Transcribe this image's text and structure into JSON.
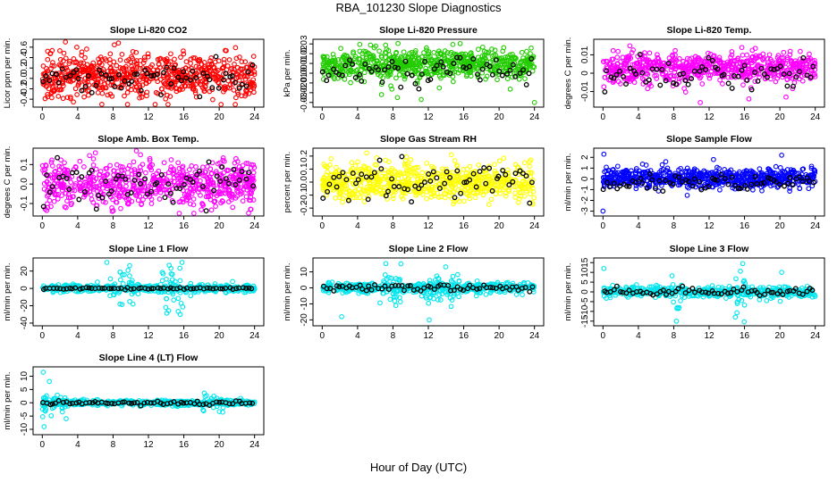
{
  "title": "RBA_101230  Slope Diagnostics",
  "xlabel": "Hour of Day (UTC)",
  "colors": {
    "red": "#ff0000",
    "green": "#22cc00",
    "magenta": "#ff00ff",
    "yellow": "#ffff00",
    "blue": "#0000ff",
    "cyan": "#00e5ee",
    "black": "#000000"
  },
  "chart_data": [
    {
      "type": "scatter",
      "title": "Slope Li-820 CO2",
      "ylabel": "Licor ppm per min.",
      "color": "red",
      "xlim": [
        0,
        24
      ],
      "ylim": [
        -0.5,
        0.7
      ],
      "yticks": [
        -0.4,
        -0.2,
        0.0,
        0.2,
        0.4,
        0.6
      ],
      "ytick_labels": [
        "-0.4",
        "-0.2",
        "0.0",
        "0.2",
        "0.4",
        "0.6"
      ],
      "xticks": [
        0,
        4,
        8,
        12,
        16,
        20,
        24
      ],
      "xtick_labels": [
        "0",
        "4",
        "8",
        "12",
        "16",
        "20",
        "24"
      ],
      "n_points": 700,
      "center": 0.05,
      "spread": 0.2,
      "black_center": -0.02,
      "black_spread": 0.15,
      "outliers": [
        [
          8.6,
          0.68
        ],
        [
          3.9,
          0.6
        ],
        [
          0.6,
          0.52
        ],
        [
          10.6,
          0.5
        ]
      ]
    },
    {
      "type": "scatter",
      "title": "Slope Li-820 Pressure",
      "ylabel": "kPa per min.",
      "color": "green",
      "xlim": [
        0,
        24
      ],
      "ylim": [
        -0.032,
        0.032
      ],
      "yticks": [
        -0.03,
        -0.02,
        -0.01,
        0.0,
        0.01,
        0.02,
        0.03
      ],
      "ytick_labels": [
        "-0.03",
        "-0.02",
        "-0.01",
        "0.00",
        "0.01",
        "0.02",
        "0.03"
      ],
      "xticks": [
        0,
        4,
        8,
        12,
        16,
        20,
        24
      ],
      "xtick_labels": [
        "0",
        "4",
        "8",
        "12",
        "16",
        "20",
        "24"
      ],
      "n_points": 700,
      "center": 0.009,
      "spread": 0.008,
      "black_center": 0.003,
      "black_spread": 0.008,
      "outliers": [
        [
          24,
          -0.03
        ],
        [
          8.5,
          -0.025
        ],
        [
          11.2,
          -0.027
        ],
        [
          6.7,
          -0.022
        ]
      ]
    },
    {
      "type": "scatter",
      "title": "Slope Li-820 Temp.",
      "ylabel": "degrees C per min.",
      "color": "magenta",
      "xlim": [
        0,
        24
      ],
      "ylim": [
        -0.017,
        0.017
      ],
      "yticks": [
        -0.01,
        0.0,
        0.01
      ],
      "ytick_labels": [
        "-0.01",
        "0",
        "0.01"
      ],
      "xticks": [
        0,
        4,
        8,
        12,
        16,
        20,
        24
      ],
      "xtick_labels": [
        "0",
        "4",
        "8",
        "12",
        "16",
        "20",
        "24"
      ],
      "n_points": 700,
      "center": 0.003,
      "spread": 0.004,
      "black_center": 0.0,
      "black_spread": 0.004,
      "outliers": [
        [
          11,
          -0.016
        ],
        [
          16.5,
          -0.014
        ],
        [
          20.7,
          -0.013
        ],
        [
          15.7,
          0.014
        ]
      ]
    },
    {
      "type": "scatter",
      "title": "Slope Amb. Box Temp.",
      "ylabel": "degrees C per min.",
      "color": "magenta",
      "xlim": [
        0,
        24
      ],
      "ylim": [
        -0.15,
        0.17
      ],
      "yticks": [
        -0.1,
        0.0,
        0.1
      ],
      "ytick_labels": [
        "-0.1",
        "0.0",
        "0.1"
      ],
      "xticks": [
        0,
        4,
        8,
        12,
        16,
        20,
        24
      ],
      "xtick_labels": [
        "0",
        "4",
        "8",
        "12",
        "16",
        "20",
        "24"
      ],
      "n_points": 700,
      "center": 0.0,
      "spread": 0.055,
      "black_center": -0.02,
      "black_spread": 0.05,
      "outliers": [
        [
          7.9,
          -0.14
        ],
        [
          23.6,
          -0.13
        ],
        [
          6,
          0.16
        ],
        [
          11.1,
          0.15
        ]
      ]
    },
    {
      "type": "scatter",
      "title": "Slope Gas Stream RH",
      "ylabel": "percent per min.",
      "color": "yellow",
      "xlim": [
        0,
        24
      ],
      "ylim": [
        -0.24,
        0.24
      ],
      "yticks": [
        -0.2,
        -0.1,
        0.0,
        0.1,
        0.2
      ],
      "ytick_labels": [
        "-0.2",
        "-0.1",
        "0.0",
        "0.1",
        "0.2"
      ],
      "xticks": [
        0,
        4,
        8,
        12,
        16,
        20,
        24
      ],
      "xtick_labels": [
        "0",
        "4",
        "8",
        "12",
        "16",
        "20",
        "24"
      ],
      "n_points": 700,
      "center": 0.0,
      "spread": 0.07,
      "black_center": 0.0,
      "black_spread": 0.07,
      "outliers": [
        [
          23.6,
          0.17
        ],
        [
          23.8,
          -0.17
        ],
        [
          1,
          0.18
        ],
        [
          14.6,
          0.21
        ]
      ]
    },
    {
      "type": "scatter",
      "title": "Slope Sample Flow",
      "ylabel": "ml/min per min.",
      "color": "blue",
      "xlim": [
        0,
        24
      ],
      "ylim": [
        -3.2,
        2.6
      ],
      "yticks": [
        -3,
        -2,
        -1,
        0,
        1,
        2
      ],
      "ytick_labels": [
        "-3",
        "-2",
        "-1",
        "0",
        "1",
        "2"
      ],
      "xticks": [
        0,
        4,
        8,
        12,
        16,
        20,
        24
      ],
      "xtick_labels": [
        "0",
        "4",
        "8",
        "12",
        "16",
        "20",
        "24"
      ],
      "n_points": 700,
      "center": 0.1,
      "spread": 0.45,
      "black_center": -0.3,
      "black_spread": 0.4,
      "outliers": [
        [
          0,
          -3.0
        ],
        [
          0.1,
          2.3
        ],
        [
          20.2,
          2.2
        ],
        [
          7.1,
          1.6
        ],
        [
          12.5,
          1.8
        ]
      ]
    },
    {
      "type": "scatter",
      "title": "Slope Line 1 Flow",
      "ylabel": "ml/min per min.",
      "color": "cyan",
      "xlim": [
        0,
        24
      ],
      "ylim": [
        -40,
        32
      ],
      "yticks": [
        -20,
        0,
        20
      ],
      "ytick_labels": [
        "-20",
        "0",
        "20"
      ],
      "extra_ytick_labels": [
        "-40"
      ],
      "xticks": [
        0,
        4,
        8,
        12,
        16,
        20,
        24
      ],
      "xtick_labels": [
        "0",
        "4",
        "8",
        "12",
        "16",
        "20",
        "24"
      ],
      "n_points": 520,
      "center": 0.0,
      "spread": 2.0,
      "black_center": 0.0,
      "black_spread": 0.5,
      "burst_ranges": [
        [
          7.5,
          10.5,
          22
        ],
        [
          13.5,
          16,
          25
        ]
      ],
      "outliers": [
        [
          15.8,
          30
        ],
        [
          7.3,
          30
        ],
        [
          15.6,
          -30
        ]
      ]
    },
    {
      "type": "scatter",
      "title": "Slope Line 2 Flow",
      "ylabel": "ml/min per min.",
      "color": "cyan",
      "xlim": [
        0,
        24
      ],
      "ylim": [
        -22,
        17
      ],
      "yticks": [
        -20,
        -10,
        0,
        10
      ],
      "ytick_labels": [
        "-20",
        "-10",
        "0",
        "10"
      ],
      "xticks": [
        0,
        4,
        8,
        12,
        16,
        20,
        24
      ],
      "xtick_labels": [
        "0",
        "4",
        "8",
        "12",
        "16",
        "20",
        "24"
      ],
      "n_points": 520,
      "center": 0.0,
      "spread": 1.5,
      "black_center": 0.0,
      "black_spread": 1.2,
      "burst_ranges": [
        [
          6.5,
          9,
          9
        ],
        [
          11,
          15.5,
          10
        ]
      ],
      "outliers": [
        [
          8.9,
          15
        ],
        [
          12.1,
          -20
        ],
        [
          2.2,
          -18
        ],
        [
          7.2,
          15.2
        ]
      ]
    },
    {
      "type": "scatter",
      "title": "Slope Line 3 Flow",
      "ylabel": "ml/min per min.",
      "color": "cyan",
      "xlim": [
        0,
        24
      ],
      "ylim": [
        -16,
        16
      ],
      "yticks": [
        -15,
        -10,
        -5,
        0,
        5,
        10,
        15
      ],
      "ytick_labels": [
        "-15",
        "-10",
        "-5",
        "0",
        "5",
        "10",
        "15"
      ],
      "xticks": [
        0,
        4,
        8,
        12,
        16,
        20,
        24
      ],
      "xtick_labels": [
        "0",
        "4",
        "8",
        "12",
        "16",
        "20",
        "24"
      ],
      "n_points": 520,
      "center": 0.0,
      "spread": 1.3,
      "black_center": 0.0,
      "black_spread": 1.0,
      "burst_ranges": [
        [
          7.8,
          9,
          9
        ],
        [
          14.8,
          16.3,
          10
        ]
      ],
      "outliers": [
        [
          15.8,
          14.5
        ],
        [
          0.1,
          12
        ],
        [
          8.3,
          -15
        ],
        [
          20.2,
          10
        ]
      ]
    },
    {
      "type": "scatter",
      "title": "Slope Line 4 (LT) Flow",
      "ylabel": "ml/min per min.",
      "color": "cyan",
      "xlim": [
        0,
        24
      ],
      "ylim": [
        -11,
        12.5
      ],
      "yticks": [
        -10,
        -5,
        0,
        5,
        10
      ],
      "ytick_labels": [
        "-10",
        "-5",
        "0",
        "5",
        "10"
      ],
      "xticks": [
        0,
        4,
        8,
        12,
        16,
        20,
        24
      ],
      "xtick_labels": [
        "0",
        "4",
        "8",
        "12",
        "16",
        "20",
        "24"
      ],
      "n_points": 520,
      "center": 0.0,
      "spread": 0.5,
      "black_center": 0.0,
      "black_spread": 0.4,
      "burst_ranges": [
        [
          0,
          2.8,
          4
        ],
        [
          17.5,
          20.5,
          3
        ]
      ],
      "outliers": [
        [
          0.1,
          11.5
        ],
        [
          0.2,
          -9
        ],
        [
          0.8,
          8
        ],
        [
          2.7,
          -6
        ]
      ]
    }
  ]
}
